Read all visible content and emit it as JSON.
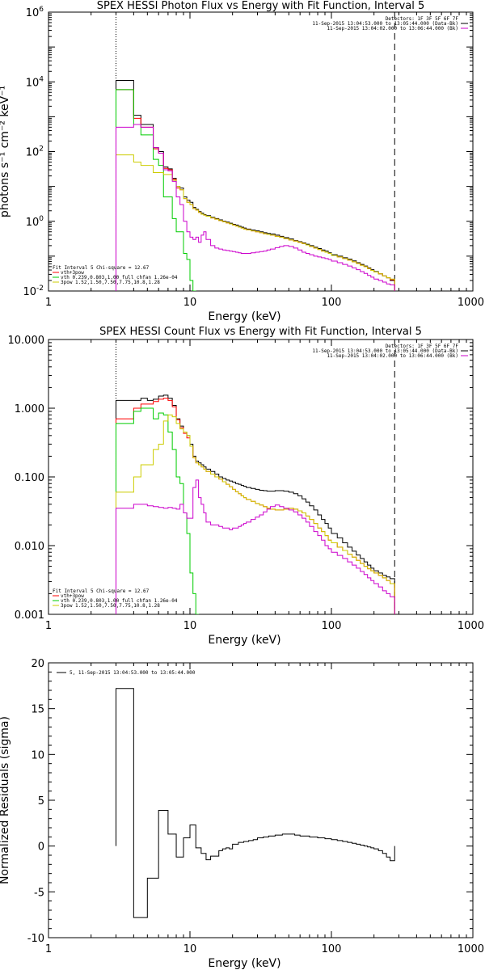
{
  "colors": {
    "data": "#000000",
    "total": "#ff0000",
    "thermal": "#00cc00",
    "nonthermal": "#cccc00",
    "background": "#cc00cc"
  },
  "chart_data": [
    {
      "type": "line",
      "title": "SPEX HESSI Photon Flux vs Energy with Fit Function, Interval 5",
      "xlabel": "Energy (keV)",
      "ylabel": "photons s⁻¹ cm⁻² keV⁻¹",
      "xscale": "log",
      "yscale": "log",
      "xlim": [
        1,
        1000
      ],
      "ylim": [
        0.01,
        1000000
      ],
      "xticks": [
        {
          "v": 1,
          "t": "1"
        },
        {
          "v": 10,
          "t": "10"
        },
        {
          "v": 100,
          "t": "100"
        },
        {
          "v": 1000,
          "t": "1000"
        }
      ],
      "yticks": [
        {
          "v": 0.01,
          "b": "10",
          "e": "-2"
        },
        {
          "v": 1,
          "b": "10",
          "e": "0"
        },
        {
          "v": 100,
          "b": "10",
          "e": "2"
        },
        {
          "v": 10000,
          "b": "10",
          "e": "4"
        },
        {
          "v": 1000000,
          "b": "10",
          "e": "6"
        }
      ],
      "vlines": [
        {
          "x": 3,
          "style": "dotted"
        },
        {
          "x": 280,
          "style": "dashed"
        }
      ],
      "legend_top_right": [
        "Detectors: 1F 3F 5F 6F 7F",
        "11-Sep-2015 13:04:53.000 to 13:05:44.000 (Data-Bk)",
        "11-Sep-2015 13:04:02.000 to 13:06:44.000 (Bk)"
      ],
      "legend_bottom_left": [
        "Fit Interval 5   Chi-square = 12.67",
        "vth+3pow",
        "vth 0.239,0.803,1.00  full chfan 1.26e-04",
        "3pow 1.52,1.50,7.50,7.75,10.8,1.28"
      ],
      "bin_edges": [
        3,
        3.5,
        4,
        4.5,
        5,
        5.5,
        6,
        6.5,
        7,
        7.5,
        8,
        8.5,
        9,
        9.5,
        10,
        10.5,
        11,
        11.5,
        12,
        12.5,
        13,
        14,
        15,
        16,
        17,
        18,
        19,
        20,
        21,
        22,
        23,
        24,
        25,
        27,
        29,
        31,
        33,
        35,
        37,
        40,
        43,
        46,
        50,
        54,
        58,
        62,
        66,
        70,
        75,
        80,
        85,
        90,
        95,
        100,
        110,
        120,
        130,
        140,
        150,
        160,
        170,
        180,
        190,
        200,
        215,
        230,
        245,
        260,
        280
      ],
      "series": [
        {
          "name": "Data-Bk",
          "color": "#000000",
          "values": [
            11000,
            11000,
            1100,
            600,
            600,
            130,
            100,
            36,
            32,
            17,
            10,
            9,
            5,
            4,
            3.5,
            2.5,
            2.2,
            1.9,
            1.7,
            1.55,
            1.45,
            1.3,
            1.2,
            1.1,
            1.0,
            0.95,
            0.88,
            0.82,
            0.78,
            0.72,
            0.68,
            0.64,
            0.6,
            0.56,
            0.53,
            0.5,
            0.47,
            0.45,
            0.43,
            0.4,
            0.37,
            0.34,
            0.31,
            0.28,
            0.26,
            0.24,
            0.22,
            0.2,
            0.18,
            0.165,
            0.15,
            0.14,
            0.125,
            0.11,
            0.1,
            0.09,
            0.082,
            0.073,
            0.065,
            0.058,
            0.052,
            0.046,
            0.041,
            0.036,
            0.031,
            0.027,
            0.024,
            0.02
          ]
        },
        {
          "name": "vth+3pow",
          "color": "#ff0000",
          "values": [
            6000,
            6000,
            900,
            500,
            500,
            120,
            90,
            33,
            30,
            16,
            9,
            8,
            4.5,
            3.5,
            3,
            2.3,
            2.1,
            1.8,
            1.6,
            1.5,
            1.4,
            1.25,
            1.15,
            1.05,
            0.97,
            0.9,
            0.84,
            0.78,
            0.73,
            0.68,
            0.64,
            0.6,
            0.57,
            0.53,
            0.5,
            0.47,
            0.44,
            0.42,
            0.4,
            0.37,
            0.35,
            0.32,
            0.29,
            0.27,
            0.25,
            0.23,
            0.21,
            0.19,
            0.17,
            0.155,
            0.14,
            0.13,
            0.12,
            0.105,
            0.095,
            0.085,
            0.077,
            0.069,
            0.062,
            0.055,
            0.05,
            0.044,
            0.039,
            0.035,
            0.031,
            0.027,
            0.024,
            0.021
          ]
        },
        {
          "name": "vth",
          "color": "#00cc00",
          "values": [
            6000,
            6000,
            600,
            300,
            300,
            60,
            40,
            5,
            5,
            1.2,
            0.5,
            0.5,
            0.12,
            0.08,
            0.02,
            0.01
          ]
        },
        {
          "name": "3pow",
          "color": "#cccc00",
          "values": [
            80,
            80,
            50,
            40,
            40,
            25,
            25,
            22,
            22,
            15,
            10,
            8,
            4.5,
            3.5,
            3,
            2.3,
            2.1,
            1.8,
            1.6,
            1.5,
            1.4,
            1.25,
            1.15,
            1.05,
            0.97,
            0.9,
            0.84,
            0.78,
            0.73,
            0.68,
            0.64,
            0.6,
            0.57,
            0.53,
            0.5,
            0.47,
            0.44,
            0.42,
            0.4,
            0.37,
            0.35,
            0.32,
            0.29,
            0.27,
            0.25,
            0.23,
            0.21,
            0.19,
            0.17,
            0.155,
            0.14,
            0.13,
            0.12,
            0.105,
            0.095,
            0.085,
            0.077,
            0.069,
            0.062,
            0.055,
            0.05,
            0.044,
            0.039,
            0.035,
            0.031,
            0.027,
            0.024,
            0.022
          ]
        },
        {
          "name": "Bk",
          "color": "#cc00cc",
          "values": [
            500,
            500,
            600,
            500,
            500,
            130,
            90,
            30,
            28,
            14,
            5,
            3,
            1,
            0.5,
            0.35,
            0.3,
            0.35,
            0.25,
            0.4,
            0.5,
            0.3,
            0.2,
            0.17,
            0.16,
            0.15,
            0.145,
            0.14,
            0.135,
            0.13,
            0.125,
            0.12,
            0.12,
            0.12,
            0.125,
            0.13,
            0.135,
            0.14,
            0.15,
            0.16,
            0.175,
            0.19,
            0.2,
            0.19,
            0.17,
            0.15,
            0.13,
            0.12,
            0.11,
            0.1,
            0.095,
            0.09,
            0.085,
            0.08,
            0.072,
            0.065,
            0.058,
            0.052,
            0.046,
            0.041,
            0.036,
            0.032,
            0.028,
            0.025,
            0.022,
            0.02,
            0.018,
            0.016,
            0.015
          ]
        }
      ]
    },
    {
      "type": "line",
      "title": "SPEX HESSI Count Flux vs Energy with Fit Function, Interval 5",
      "xlabel": "Energy (keV)",
      "ylabel": "",
      "xscale": "log",
      "yscale": "log",
      "xlim": [
        1,
        1000
      ],
      "ylim": [
        0.001,
        10
      ],
      "xticks": [
        {
          "v": 1,
          "t": "1"
        },
        {
          "v": 10,
          "t": "10"
        },
        {
          "v": 100,
          "t": "100"
        },
        {
          "v": 1000,
          "t": "1000"
        }
      ],
      "yticks": [
        {
          "v": 0.001,
          "t": "0.001"
        },
        {
          "v": 0.01,
          "t": "0.010"
        },
        {
          "v": 0.1,
          "t": "0.100"
        },
        {
          "v": 1,
          "t": "1.000"
        },
        {
          "v": 10,
          "t": "10.000"
        }
      ],
      "vlines": [
        {
          "x": 3,
          "style": "dotted"
        },
        {
          "x": 280,
          "style": "dashed"
        }
      ],
      "legend_top_right": [
        "Detectors: 1F 3F 5F 6F 7F",
        "11-Sep-2015 13:04:53.000 to 13:05:44.000 (Data-Bk)",
        "11-Sep-2015 13:04:02.000 to 13:06:44.000 (Bk)"
      ],
      "legend_bottom_left": [
        "Fit Interval 5   Chi-square = 12.67",
        "vth+3pow",
        "vth 0.239,0.803,1.00  full chfan 1.26e-04",
        "3pow 1.52,1.50,7.50,7.75,10.8,1.28"
      ],
      "bin_edges": [
        3,
        3.5,
        4,
        4.5,
        5,
        5.5,
        6,
        6.5,
        7,
        7.5,
        8,
        8.5,
        9,
        9.5,
        10,
        10.5,
        11,
        11.5,
        12,
        12.5,
        13,
        14,
        15,
        16,
        17,
        18,
        19,
        20,
        21,
        22,
        23,
        24,
        25,
        27,
        29,
        31,
        33,
        35,
        37,
        40,
        43,
        46,
        50,
        54,
        58,
        62,
        66,
        70,
        75,
        80,
        85,
        90,
        95,
        100,
        110,
        120,
        130,
        140,
        150,
        160,
        170,
        180,
        190,
        200,
        215,
        230,
        245,
        260,
        280
      ],
      "series": [
        {
          "name": "Data-Bk",
          "color": "#000000",
          "values": [
            1.3,
            1.3,
            1.3,
            1.4,
            1.3,
            1.35,
            1.5,
            1.55,
            1.4,
            1.1,
            0.7,
            0.55,
            0.45,
            0.4,
            0.3,
            0.2,
            0.17,
            0.16,
            0.15,
            0.14,
            0.13,
            0.12,
            0.11,
            0.1,
            0.095,
            0.09,
            0.087,
            0.084,
            0.08,
            0.078,
            0.075,
            0.073,
            0.07,
            0.068,
            0.066,
            0.064,
            0.063,
            0.062,
            0.062,
            0.063,
            0.063,
            0.062,
            0.06,
            0.057,
            0.053,
            0.048,
            0.043,
            0.038,
            0.033,
            0.028,
            0.024,
            0.021,
            0.018,
            0.015,
            0.013,
            0.011,
            0.0095,
            0.0083,
            0.0073,
            0.0065,
            0.0058,
            0.0052,
            0.0047,
            0.0043,
            0.004,
            0.0037,
            0.0035,
            0.0033
          ]
        },
        {
          "name": "vth+3pow",
          "color": "#ff0000",
          "values": [
            0.7,
            0.7,
            1.0,
            1.15,
            1.15,
            1.25,
            1.35,
            1.4,
            1.3,
            1.05,
            0.68,
            0.52,
            0.43,
            0.37,
            0.28,
            0.19,
            0.16,
            0.15,
            0.14,
            0.13,
            0.12,
            0.11,
            0.1,
            0.093,
            0.085,
            0.078,
            0.072,
            0.066,
            0.061,
            0.057,
            0.053,
            0.05,
            0.047,
            0.044,
            0.041,
            0.039,
            0.037,
            0.035,
            0.034,
            0.033,
            0.033,
            0.034,
            0.035,
            0.034,
            0.032,
            0.03,
            0.027,
            0.024,
            0.021,
            0.018,
            0.016,
            0.014,
            0.012,
            0.011,
            0.0095,
            0.0085,
            0.0075,
            0.0068,
            0.0061,
            0.0055,
            0.005,
            0.0046,
            0.0043,
            0.004,
            0.0037,
            0.0034,
            0.0031,
            0.0028
          ]
        },
        {
          "name": "vth",
          "color": "#00cc00",
          "values": [
            0.6,
            0.6,
            0.9,
            1.0,
            1.0,
            0.7,
            0.85,
            0.8,
            0.45,
            0.25,
            0.1,
            0.08,
            0.03,
            0.015,
            0.004,
            0.002,
            0.001
          ]
        },
        {
          "name": "3pow",
          "color": "#cccc00",
          "values": [
            0.06,
            0.06,
            0.1,
            0.15,
            0.15,
            0.25,
            0.3,
            0.65,
            0.8,
            0.75,
            0.6,
            0.5,
            0.45,
            0.4,
            0.28,
            0.19,
            0.16,
            0.15,
            0.14,
            0.13,
            0.12,
            0.11,
            0.1,
            0.093,
            0.085,
            0.078,
            0.072,
            0.066,
            0.061,
            0.057,
            0.053,
            0.05,
            0.047,
            0.044,
            0.041,
            0.039,
            0.037,
            0.035,
            0.034,
            0.033,
            0.033,
            0.034,
            0.035,
            0.034,
            0.032,
            0.03,
            0.027,
            0.024,
            0.021,
            0.018,
            0.016,
            0.014,
            0.012,
            0.011,
            0.0095,
            0.0085,
            0.0075,
            0.0068,
            0.0061,
            0.0055,
            0.005,
            0.0046,
            0.0043,
            0.004,
            0.0037,
            0.0034,
            0.0031,
            0.0028
          ]
        },
        {
          "name": "Bk",
          "color": "#cc00cc",
          "values": [
            0.035,
            0.035,
            0.04,
            0.04,
            0.038,
            0.037,
            0.036,
            0.035,
            0.036,
            0.035,
            0.034,
            0.04,
            0.03,
            0.025,
            0.025,
            0.07,
            0.09,
            0.05,
            0.04,
            0.03,
            0.022,
            0.02,
            0.02,
            0.019,
            0.018,
            0.018,
            0.017,
            0.018,
            0.018,
            0.019,
            0.02,
            0.021,
            0.022,
            0.024,
            0.026,
            0.028,
            0.031,
            0.034,
            0.037,
            0.039,
            0.037,
            0.035,
            0.033,
            0.031,
            0.028,
            0.025,
            0.022,
            0.019,
            0.016,
            0.014,
            0.012,
            0.01,
            0.009,
            0.008,
            0.0072,
            0.0065,
            0.0058,
            0.0052,
            0.0047,
            0.0042,
            0.0038,
            0.0034,
            0.0031,
            0.0028,
            0.0025,
            0.0022,
            0.002,
            0.0018
          ]
        }
      ]
    },
    {
      "type": "line",
      "title": "",
      "xlabel": "Energy (keV)",
      "ylabel": "Normalized Residuals (sigma)",
      "xscale": "log",
      "yscale": "linear",
      "xlim": [
        1,
        1000
      ],
      "ylim": [
        -10,
        20
      ],
      "xticks": [
        {
          "v": 1,
          "t": "1"
        },
        {
          "v": 10,
          "t": "10"
        },
        {
          "v": 100,
          "t": "100"
        },
        {
          "v": 1000,
          "t": "1000"
        }
      ],
      "yticks": [
        {
          "v": -10,
          "t": "-10"
        },
        {
          "v": -5,
          "t": "-5"
        },
        {
          "v": 0,
          "t": "0"
        },
        {
          "v": 5,
          "t": "5"
        },
        {
          "v": 10,
          "t": "10"
        },
        {
          "v": 15,
          "t": "15"
        },
        {
          "v": 20,
          "t": "20"
        }
      ],
      "legend_top_left": [
        "5, 11-Sep-2015 13:04:53.000 to 13:05:44.000"
      ],
      "bin_edges": [
        3,
        4,
        5,
        6,
        7,
        8,
        9,
        10,
        11,
        12,
        13,
        14,
        15,
        16,
        17,
        18,
        19,
        20,
        22,
        24,
        26,
        28,
        30,
        33,
        36,
        40,
        45,
        50,
        55,
        60,
        70,
        80,
        90,
        100,
        110,
        120,
        130,
        140,
        150,
        160,
        170,
        180,
        190,
        200,
        215,
        230,
        245,
        260,
        280
      ],
      "series": [
        {
          "name": "residuals",
          "color": "#000000",
          "values": [
            17.2,
            -7.8,
            -3.5,
            3.9,
            1.3,
            -1.2,
            0.9,
            2.3,
            -0.2,
            -0.8,
            -1.5,
            -1.1,
            -1.1,
            -0.5,
            -0.3,
            -0.2,
            -0.3,
            0.2,
            0.4,
            0.5,
            0.6,
            0.7,
            0.9,
            1.0,
            1.1,
            1.2,
            1.3,
            1.3,
            1.2,
            1.1,
            1.0,
            0.9,
            0.8,
            0.7,
            0.6,
            0.5,
            0.4,
            0.3,
            0.2,
            0.1,
            0.0,
            -0.1,
            -0.2,
            -0.3,
            -0.5,
            -0.8,
            -1.2,
            -1.6
          ]
        }
      ]
    }
  ]
}
